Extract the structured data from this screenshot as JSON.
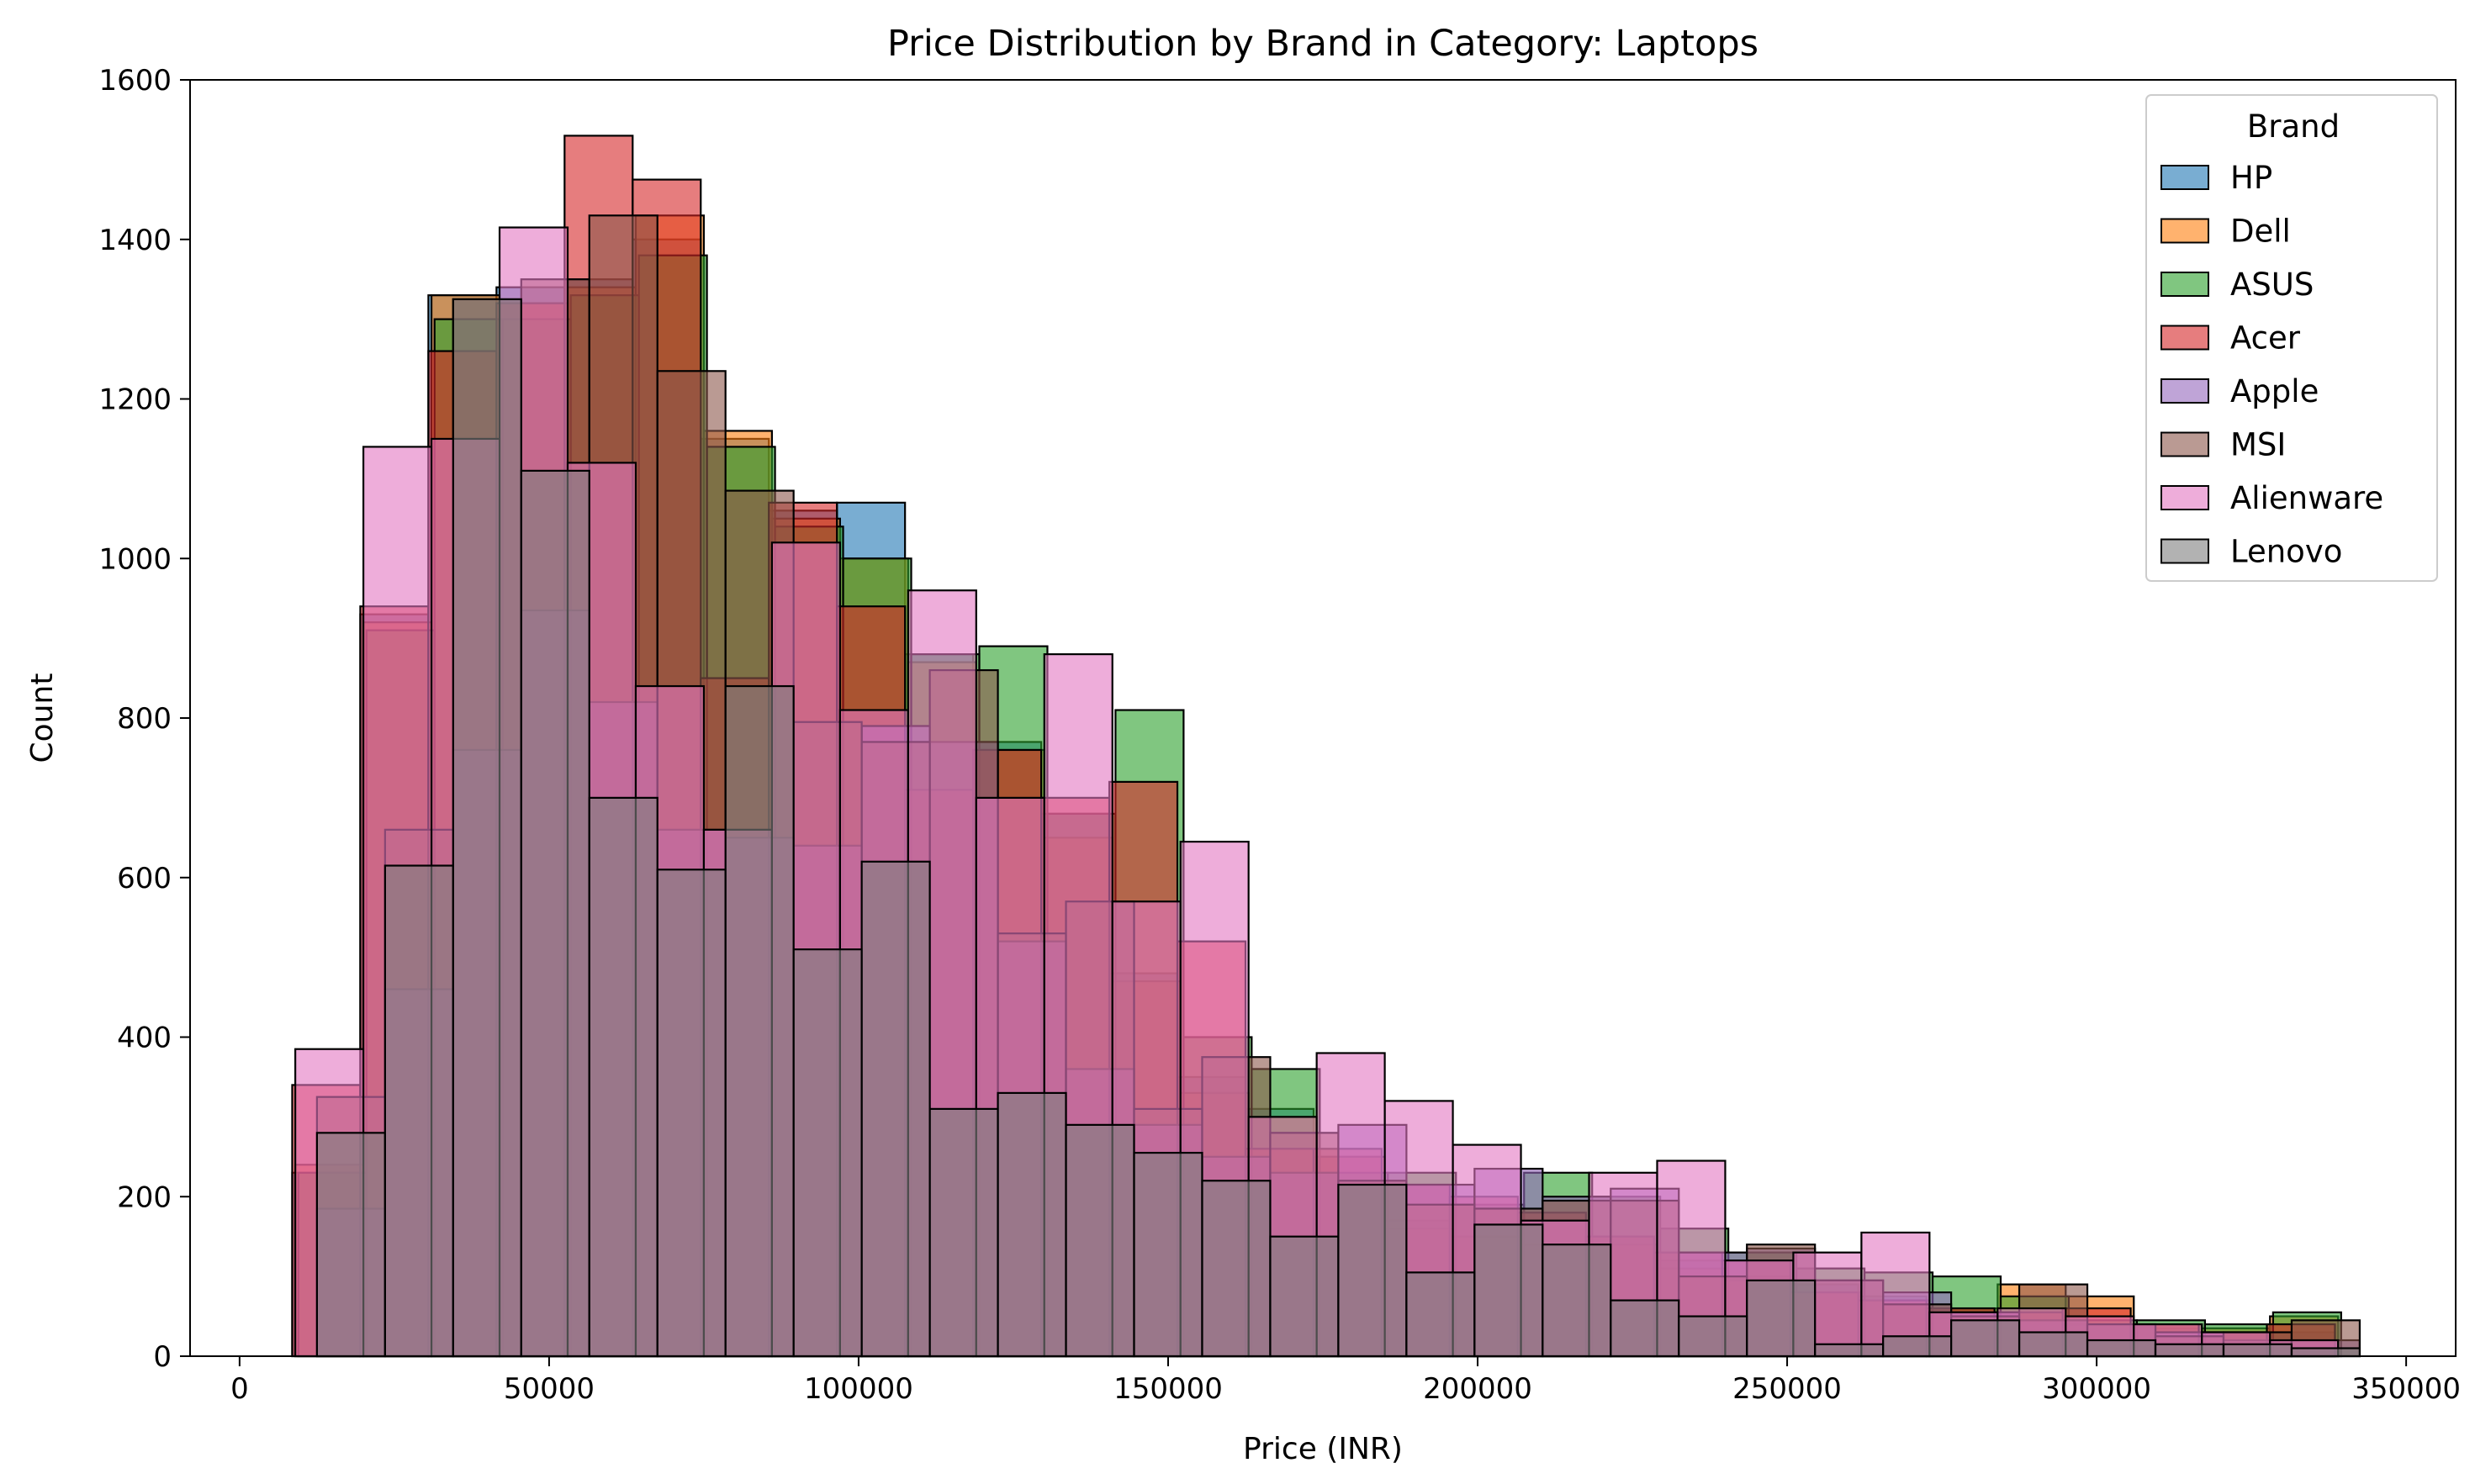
{
  "chart_data": {
    "type": "bar",
    "histogram": true,
    "title": "Price Distribution by Brand in Category: Laptops",
    "xlabel": "Price (INR)",
    "ylabel": "Count",
    "xlim": [
      -8000,
      358000
    ],
    "ylim": [
      0,
      1600
    ],
    "xticks": [
      0,
      50000,
      100000,
      150000,
      200000,
      250000,
      300000,
      350000
    ],
    "yticks": [
      0,
      200,
      400,
      600,
      800,
      1000,
      1200,
      1400,
      1600
    ],
    "grid": false,
    "legend": {
      "title": "Brand",
      "placement": "top-right"
    },
    "series": [
      {
        "name": "HP",
        "color": "#1f77b4",
        "bin_start": 8500,
        "bin_width": 11000,
        "values": [
          230,
          930,
          1330,
          1340,
          1350,
          1400,
          1150,
          1060,
          1070,
          880,
          770,
          680,
          480,
          350,
          310,
          250,
          170,
          150,
          140,
          150,
          120,
          100,
          90,
          75,
          60,
          55,
          40,
          35,
          30,
          30
        ]
      },
      {
        "name": "Dell",
        "color": "#ff7f0e",
        "bin_start": 9000,
        "bin_width": 11000,
        "values": [
          240,
          920,
          1330,
          1320,
          1340,
          1430,
          1160,
          1050,
          1000,
          870,
          760,
          650,
          470,
          330,
          300,
          250,
          160,
          150,
          140,
          140,
          110,
          95,
          80,
          70,
          60,
          90,
          75,
          40,
          35,
          50
        ]
      },
      {
        "name": "ASUS",
        "color": "#2ca02c",
        "bin_start": 9500,
        "bin_width": 11000,
        "values": [
          230,
          910,
          1300,
          1300,
          1330,
          1380,
          1140,
          1040,
          1000,
          880,
          890,
          680,
          810,
          400,
          360,
          230,
          230,
          190,
          230,
          200,
          160,
          130,
          110,
          105,
          100,
          75,
          45,
          45,
          40,
          55
        ]
      },
      {
        "name": "Acer",
        "color": "#d62728",
        "bin_start": 8500,
        "bin_width": 11000,
        "values": [
          340,
          940,
          1260,
          1320,
          1530,
          1475,
          850,
          1070,
          940,
          710,
          760,
          700,
          720,
          520,
          260,
          260,
          215,
          200,
          180,
          150,
          130,
          120,
          80,
          70,
          60,
          55,
          60,
          40,
          30,
          40
        ]
      },
      {
        "name": "Apple",
        "color": "#9467bd",
        "bin_start": 12500,
        "bin_width": 11000,
        "values": [
          185,
          460,
          760,
          935,
          820,
          660,
          650,
          640,
          790,
          770,
          520,
          360,
          290,
          250,
          230,
          290,
          215,
          235,
          200,
          210,
          130,
          135,
          95,
          80,
          55,
          45,
          40,
          30,
          20,
          20
        ]
      },
      {
        "name": "MSI",
        "color": "#8c564b",
        "bin_start": 12500,
        "bin_width": 11000,
        "values": [
          325,
          660,
          1325,
          1350,
          1430,
          1235,
          1085,
          795,
          770,
          860,
          530,
          570,
          310,
          375,
          280,
          220,
          190,
          185,
          195,
          195,
          100,
          140,
          95,
          65,
          50,
          90,
          40,
          25,
          30,
          45
        ]
      },
      {
        "name": "Alienware",
        "color": "#e377c2",
        "bin_start": 9000,
        "bin_width": 11000,
        "values": [
          385,
          1140,
          1150,
          1415,
          1120,
          840,
          660,
          1020,
          810,
          960,
          700,
          880,
          570,
          645,
          300,
          380,
          320,
          265,
          170,
          230,
          245,
          120,
          130,
          155,
          55,
          60,
          50,
          40,
          30,
          20
        ]
      },
      {
        "name": "Lenovo",
        "color": "#7f7f7f",
        "bin_start": 12500,
        "bin_width": 11000,
        "values": [
          280,
          615,
          1325,
          1110,
          700,
          610,
          840,
          510,
          620,
          310,
          330,
          290,
          255,
          220,
          150,
          215,
          105,
          165,
          140,
          70,
          50,
          95,
          15,
          25,
          45,
          30,
          20,
          15,
          15,
          10
        ]
      }
    ]
  }
}
